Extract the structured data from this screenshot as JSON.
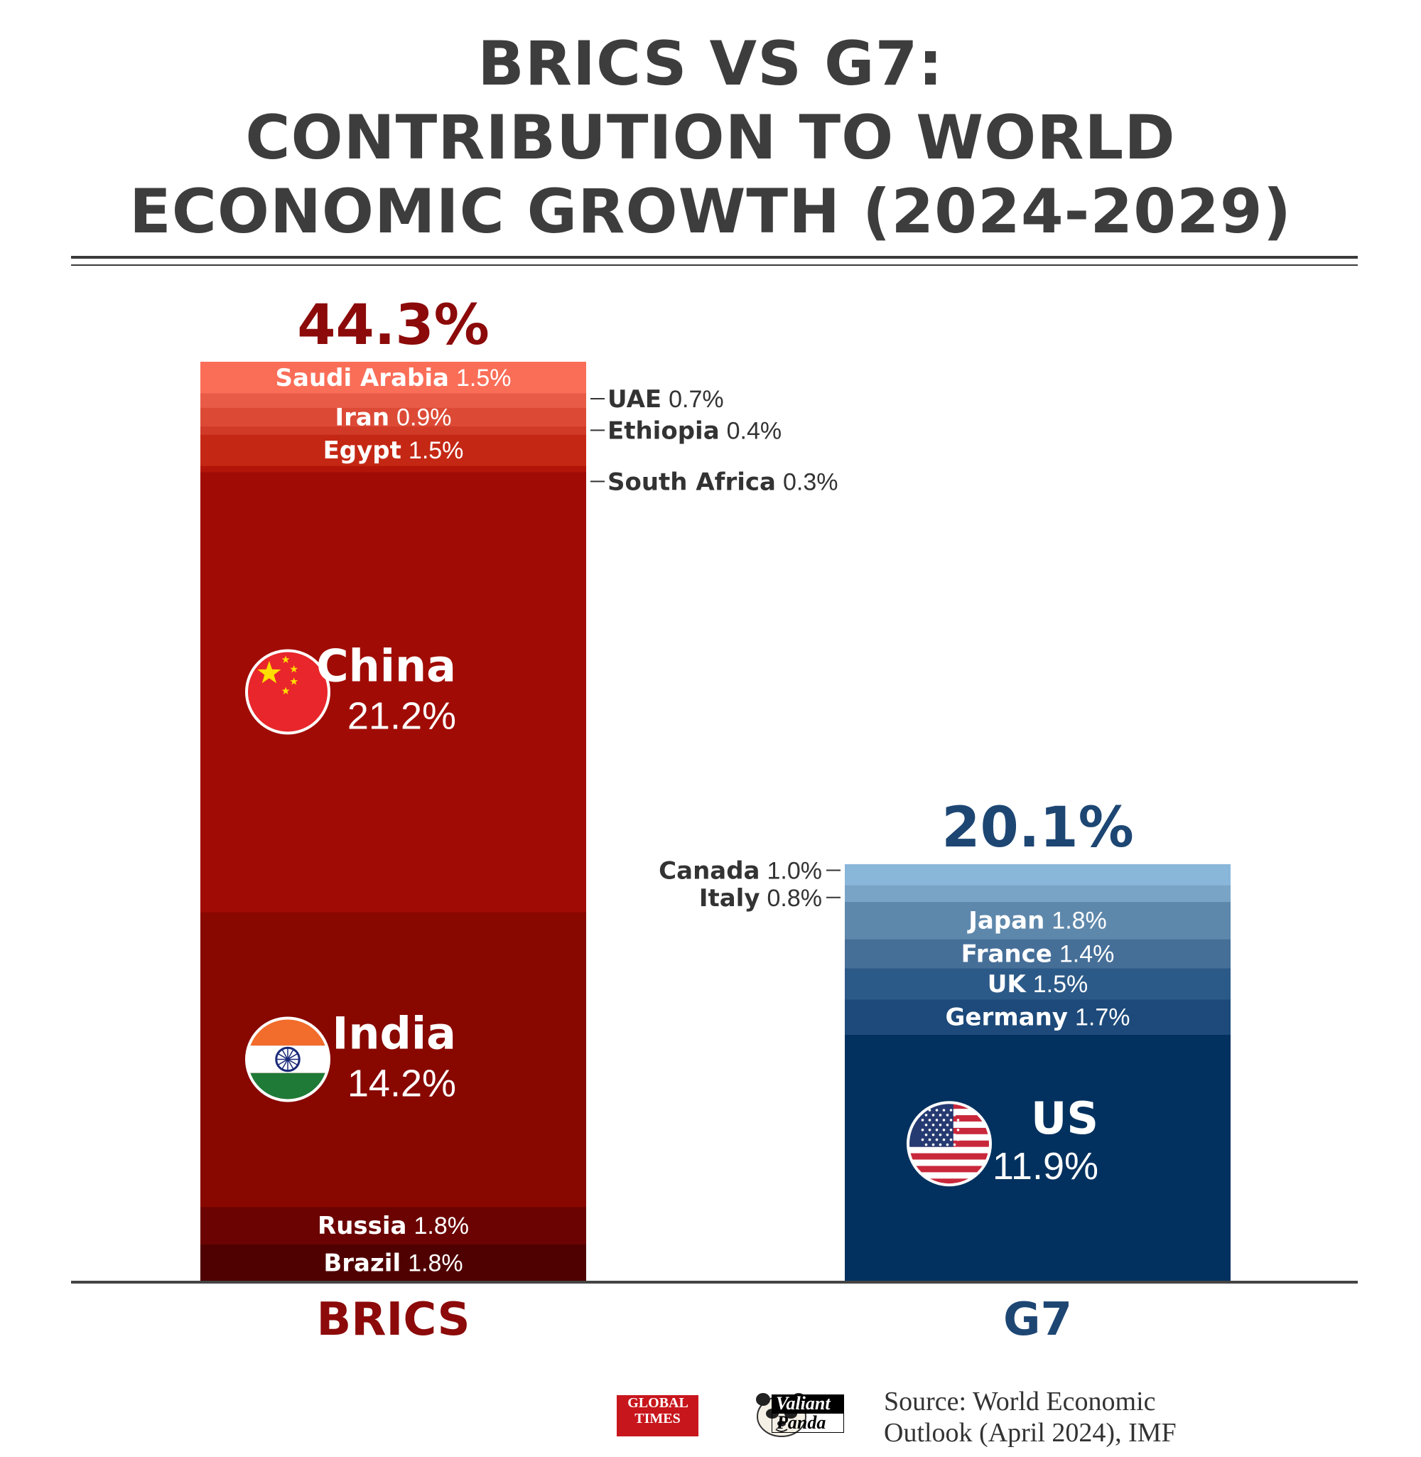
{
  "title": {
    "line1": "BRICS VS G7:",
    "line2": "CONTRIBUTION TO WORLD",
    "line3": "ECONOMIC GROWTH (2024-2029)"
  },
  "chart_data": {
    "type": "stacked-bar",
    "title": "BRICS VS G7: CONTRIBUTION TO WORLD ECONOMIC GROWTH (2024-2029)",
    "unit": "%",
    "categories": [
      "BRICS",
      "G7"
    ],
    "totals": [
      {
        "group": "BRICS",
        "value": 44.3,
        "label": "44.3%",
        "color": "#8c0a0a"
      },
      {
        "group": "G7",
        "value": 20.1,
        "label": "20.1%",
        "color": "#1d4673"
      }
    ],
    "series": [
      {
        "group": "BRICS",
        "segments": [
          {
            "name": "Brazil",
            "value": 1.8,
            "label": "1.8%",
            "color": "#4f0000",
            "labelStyle": "inline"
          },
          {
            "name": "Russia",
            "value": 1.8,
            "label": "1.8%",
            "color": "#6b0303",
            "labelStyle": "inline"
          },
          {
            "name": "India",
            "value": 14.2,
            "label": "14.2%",
            "color": "#880800",
            "labelStyle": "large",
            "flag": "india-flag-icon"
          },
          {
            "name": "China",
            "value": 21.2,
            "label": "21.2%",
            "color": "#a00c05",
            "labelStyle": "large",
            "flag": "china-flag-icon"
          },
          {
            "name": "South Africa",
            "value": 0.3,
            "label": "0.3%",
            "color": "#b21408",
            "labelStyle": "callout"
          },
          {
            "name": "Egypt",
            "value": 1.5,
            "label": "1.5%",
            "color": "#c42815",
            "labelStyle": "inline"
          },
          {
            "name": "Ethiopia",
            "value": 0.4,
            "label": "0.4%",
            "color": "#d03a27",
            "labelStyle": "callout"
          },
          {
            "name": "Iran",
            "value": 0.9,
            "label": "0.9%",
            "color": "#dc4a36",
            "labelStyle": "inline"
          },
          {
            "name": "UAE",
            "value": 0.7,
            "label": "0.7%",
            "color": "#e85c47",
            "labelStyle": "callout"
          },
          {
            "name": "Saudi Arabia",
            "value": 1.5,
            "label": "1.5%",
            "color": "#fa6e58",
            "labelStyle": "inline"
          }
        ]
      },
      {
        "group": "G7",
        "segments": [
          {
            "name": "US",
            "value": 11.9,
            "label": "11.9%",
            "color": "#03315f",
            "labelStyle": "large",
            "flag": "us-flag-icon"
          },
          {
            "name": "Germany",
            "value": 1.7,
            "label": "1.7%",
            "color": "#1d4a7a",
            "labelStyle": "inline"
          },
          {
            "name": "UK",
            "value": 1.5,
            "label": "1.5%",
            "color": "#2c5a88",
            "labelStyle": "inline"
          },
          {
            "name": "France",
            "value": 1.4,
            "label": "1.4%",
            "color": "#466f98",
            "labelStyle": "inline"
          },
          {
            "name": "Japan",
            "value": 1.8,
            "label": "1.8%",
            "color": "#5e88ab",
            "labelStyle": "inline"
          },
          {
            "name": "Italy",
            "value": 0.8,
            "label": "0.8%",
            "color": "#7aa4c6",
            "labelStyle": "callout-left"
          },
          {
            "name": "Canada",
            "value": 1.0,
            "label": "1.0%",
            "color": "#89b7da",
            "labelStyle": "callout-left"
          }
        ]
      }
    ],
    "xlabel": "",
    "ylabel": ""
  },
  "source": {
    "line1": "Source: World Economic",
    "line2": "Outlook (April 2024), IMF"
  },
  "logos": {
    "global_times_line1": "GLOBAL",
    "global_times_line2": "TIMES",
    "valiant": "Valiant",
    "panda": "Panda"
  }
}
